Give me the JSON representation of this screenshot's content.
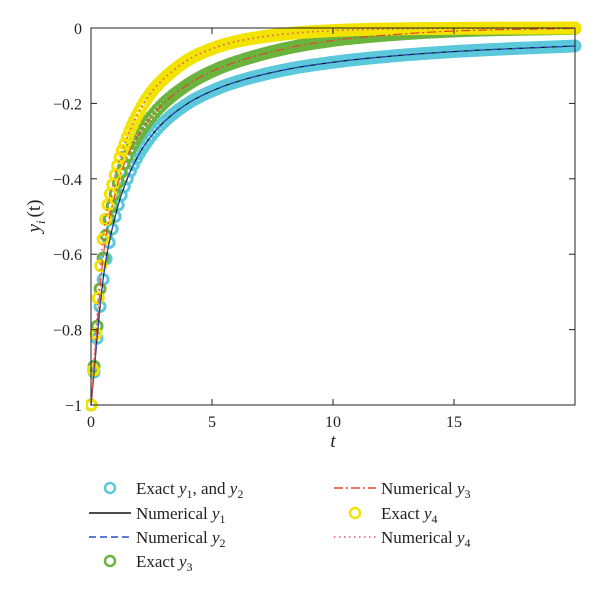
{
  "chart_data": {
    "type": "line",
    "title": "",
    "xlabel": "t",
    "ylabel": {
      "base": "y",
      "sub": "i",
      "suffix": "(t)"
    },
    "xlim": [
      0,
      20
    ],
    "ylim": [
      -1,
      0
    ],
    "xticks": [
      0,
      5,
      10,
      15
    ],
    "yticks": [
      0,
      -0.2,
      -0.4,
      -0.6,
      -0.8,
      -1
    ],
    "xtick_labels": [
      "0",
      "5",
      "10",
      "15"
    ],
    "ytick_labels": [
      "0",
      "−0.2",
      "−0.4",
      "−0.6",
      "−0.8",
      "−1"
    ],
    "grid": false,
    "legend_placement": "below",
    "series": [
      {
        "key": "exact12",
        "name": "Exact y1, and y2",
        "legend_label": {
          "pre": "Exact ",
          "v1": "y",
          "s1": "1",
          "mid": ", and ",
          "v2": "y",
          "s2": "2"
        },
        "style": "markers",
        "color": "#5bc8dc",
        "x": [
          0,
          0.5,
          1,
          1.5,
          2,
          2.5,
          3,
          4,
          5,
          6,
          8,
          10,
          12,
          15,
          20
        ],
        "values": [
          -1,
          -0.667,
          -0.5,
          -0.4,
          -0.333,
          -0.286,
          -0.25,
          -0.2,
          -0.167,
          -0.143,
          -0.111,
          -0.0909,
          -0.0769,
          -0.0625,
          -0.0476
        ]
      },
      {
        "key": "num1",
        "name": "Numerical y1",
        "legend_label": {
          "pre": "Numerical ",
          "v1": "y",
          "s1": "1"
        },
        "style": "solid",
        "color": "#111111",
        "x": [
          0,
          0.5,
          1,
          1.5,
          2,
          2.5,
          3,
          4,
          5,
          6,
          8,
          10,
          12,
          15,
          20
        ],
        "values": [
          -1,
          -0.667,
          -0.5,
          -0.4,
          -0.333,
          -0.286,
          -0.25,
          -0.2,
          -0.167,
          -0.143,
          -0.111,
          -0.0909,
          -0.0769,
          -0.0625,
          -0.0476
        ]
      },
      {
        "key": "num2",
        "name": "Numerical y2",
        "legend_label": {
          "pre": "Numerical ",
          "v1": "y",
          "s1": "2"
        },
        "style": "dashed",
        "color": "#2b4fc4",
        "x": [
          0,
          0.5,
          1,
          1.5,
          2,
          2.5,
          3,
          4,
          5,
          6,
          8,
          10,
          12,
          15,
          20
        ],
        "values": [
          -1,
          -0.667,
          -0.5,
          -0.4,
          -0.333,
          -0.286,
          -0.25,
          -0.2,
          -0.167,
          -0.143,
          -0.111,
          -0.0909,
          -0.0769,
          -0.0625,
          -0.0476
        ]
      },
      {
        "key": "exact3",
        "name": "Exact y3",
        "legend_label": {
          "pre": "Exact ",
          "v1": "y",
          "s1": "3"
        },
        "style": "markers",
        "color": "#6ab43e",
        "x": [
          0,
          0.5,
          1,
          1.5,
          2,
          2.5,
          3,
          4,
          5,
          6,
          8,
          10,
          12,
          15,
          20
        ],
        "values": [
          -1,
          -0.61,
          -0.44,
          -0.34,
          -0.28,
          -0.235,
          -0.2,
          -0.15,
          -0.115,
          -0.09,
          -0.055,
          -0.033,
          -0.02,
          -0.008,
          -0.001
        ]
      },
      {
        "key": "num3",
        "name": "Numerical y3",
        "legend_label": {
          "pre": "Numerical ",
          "v1": "y",
          "s1": "3"
        },
        "style": "dashdot",
        "color": "#e2462b",
        "x": [
          0,
          0.5,
          1,
          1.5,
          2,
          2.5,
          3,
          4,
          5,
          6,
          8,
          10,
          12,
          15,
          20
        ],
        "values": [
          -1,
          -0.61,
          -0.44,
          -0.34,
          -0.28,
          -0.235,
          -0.2,
          -0.15,
          -0.115,
          -0.09,
          -0.055,
          -0.033,
          -0.02,
          -0.008,
          -0.001
        ]
      },
      {
        "key": "exact4",
        "name": "Exact y4",
        "legend_label": {
          "pre": "Exact ",
          "v1": "y",
          "s1": "4"
        },
        "style": "markers",
        "color": "#f2e300",
        "x": [
          0,
          0.5,
          1,
          1.5,
          2,
          2.5,
          3,
          4,
          5,
          6,
          8,
          10,
          12,
          15,
          20
        ],
        "values": [
          -1,
          -0.56,
          -0.39,
          -0.29,
          -0.22,
          -0.17,
          -0.135,
          -0.085,
          -0.055,
          -0.036,
          -0.016,
          -0.007,
          -0.003,
          -0.001,
          0
        ]
      },
      {
        "key": "num4",
        "name": "Numerical y4",
        "legend_label": {
          "pre": "Numerical ",
          "v1": "y",
          "s1": "4"
        },
        "style": "dotted",
        "color": "#e0586a",
        "x": [
          0,
          0.5,
          1,
          1.5,
          2,
          2.5,
          3,
          4,
          5,
          6,
          8,
          10,
          12,
          15,
          20
        ],
        "values": [
          -1,
          -0.56,
          -0.39,
          -0.29,
          -0.22,
          -0.17,
          -0.135,
          -0.085,
          -0.055,
          -0.036,
          -0.016,
          -0.007,
          -0.003,
          -0.001,
          0
        ]
      }
    ]
  }
}
